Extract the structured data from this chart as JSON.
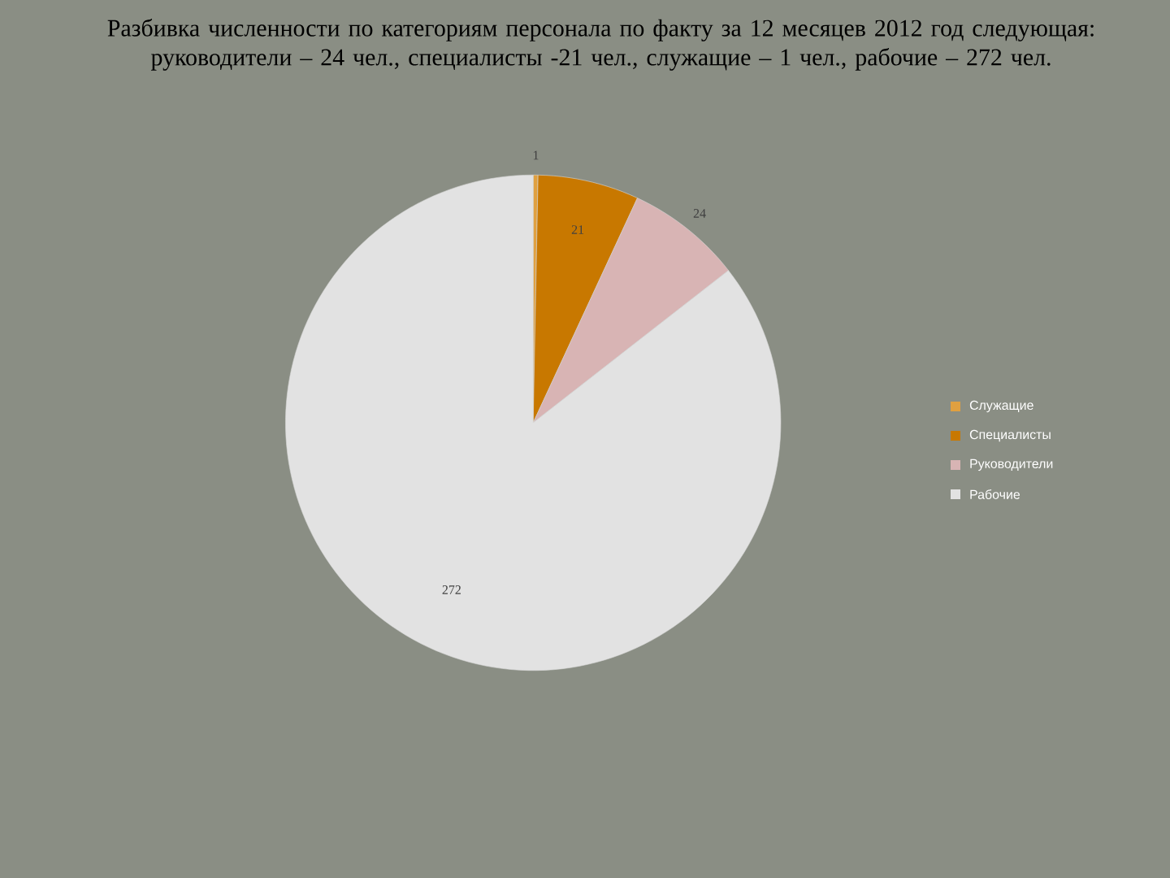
{
  "chart_data": {
    "type": "pie",
    "title": "Разбивка численности по категориям персонала по факту за 12 месяцев 2012 год следующая: руководители – 24 чел., специалисты -21 чел., служащие – 1 чел., рабочие – 272 чел.",
    "categories": [
      "Служащие",
      "Специалисты",
      "Руководители",
      "Рабочие"
    ],
    "values": [
      1,
      21,
      24,
      272
    ],
    "colors": [
      "#e0a040",
      "#c87800",
      "#d8b4b4",
      "#e2e2e2"
    ],
    "data_labels": true,
    "legend": "right"
  }
}
